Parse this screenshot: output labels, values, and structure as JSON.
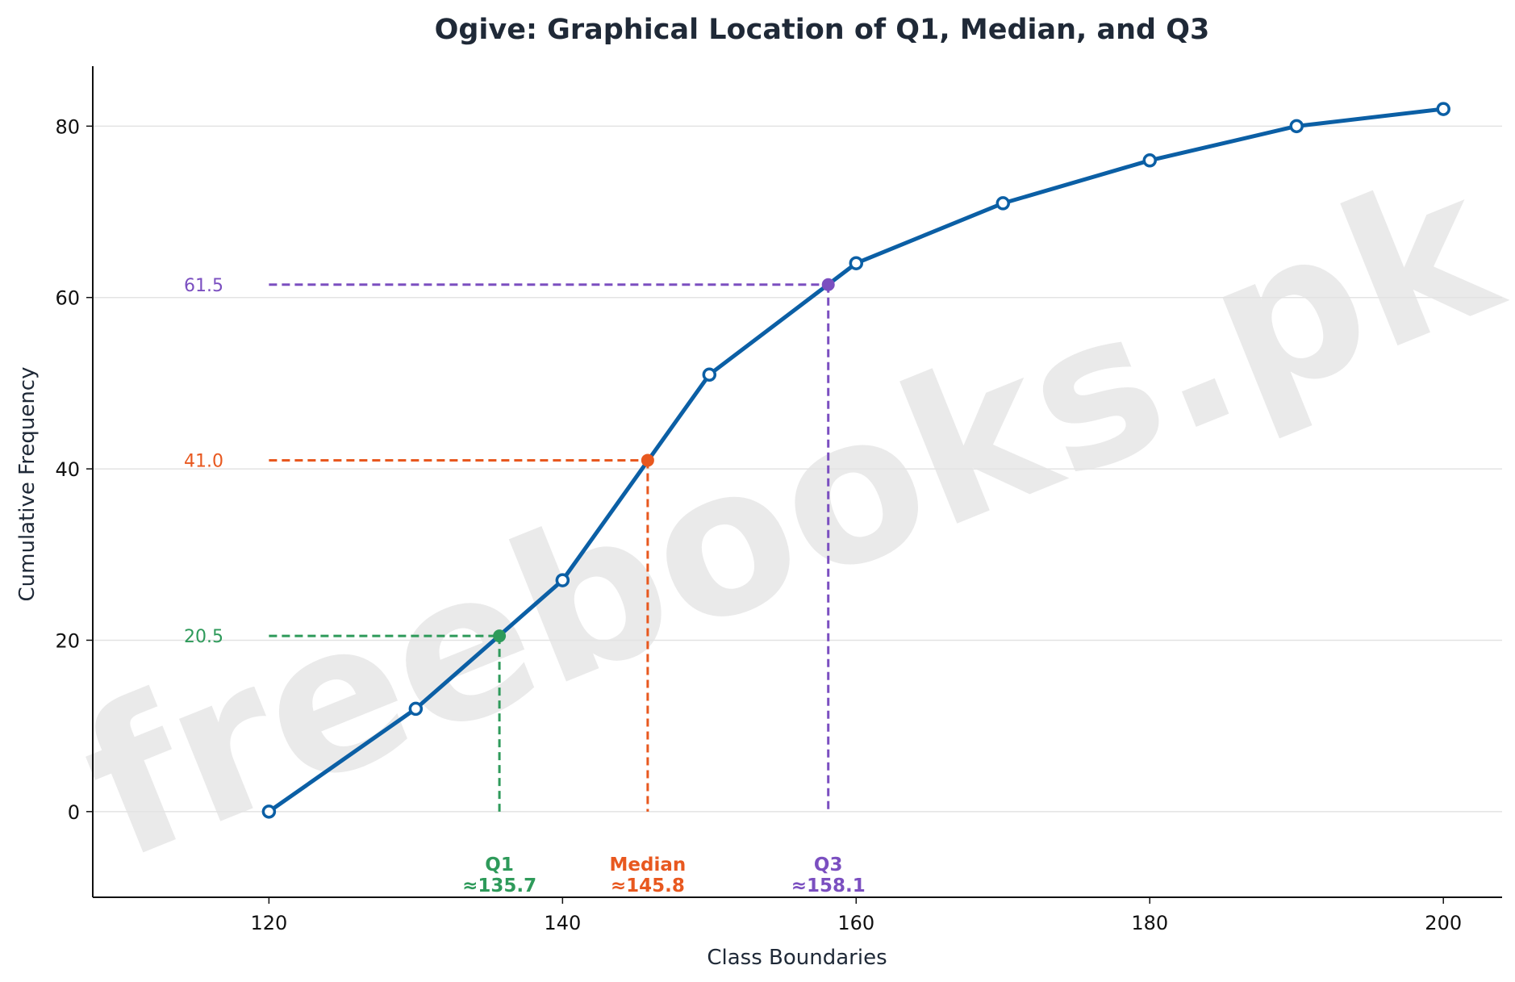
{
  "chart_data": {
    "type": "line",
    "title": "Ogive: Graphical Location of Q1, Median, and Q3",
    "xlabel": "Class Boundaries",
    "ylabel": "Cumulative Frequency",
    "xlim": [
      108,
      204
    ],
    "ylim": [
      -10,
      87
    ],
    "x_ticks": [
      120,
      140,
      160,
      180,
      200
    ],
    "y_ticks": [
      0,
      20,
      40,
      60,
      80
    ],
    "grid": "horizontal",
    "series": [
      {
        "color": "#0b5fa5",
        "points": [
          {
            "x": 120,
            "y": 0
          },
          {
            "x": 130,
            "y": 12
          },
          {
            "x": 140,
            "y": 27
          },
          {
            "x": 150,
            "y": 51
          },
          {
            "x": 160,
            "y": 64
          },
          {
            "x": 170,
            "y": 71
          },
          {
            "x": 180,
            "y": 76
          },
          {
            "x": 190,
            "y": 80
          },
          {
            "x": 200,
            "y": 82
          }
        ]
      }
    ],
    "quartiles": [
      {
        "name": "Q1",
        "x": 135.7,
        "y": 20.5,
        "color": "#2e9a5a",
        "level_label": "20.5",
        "value_label": "≈135.7"
      },
      {
        "name": "Median",
        "x": 145.8,
        "y": 41.0,
        "color": "#e8581f",
        "level_label": "41.0",
        "value_label": "≈145.8"
      },
      {
        "name": "Q3",
        "x": 158.1,
        "y": 61.5,
        "color": "#7b4fc0",
        "level_label": "61.5",
        "value_label": "≈158.1"
      }
    ]
  },
  "watermark": "freebooks.pk"
}
